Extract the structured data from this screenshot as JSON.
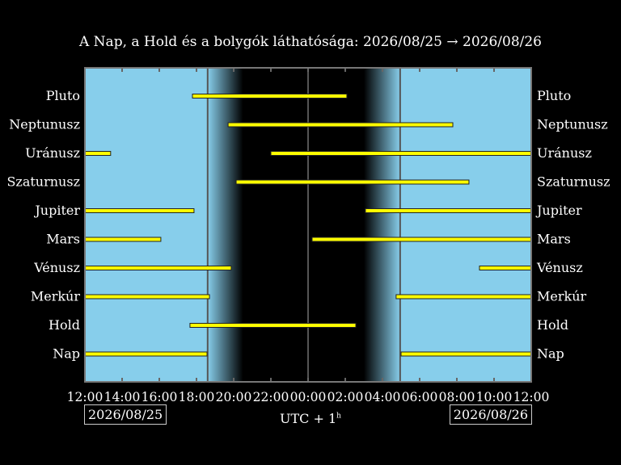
{
  "chart_data": {
    "type": "bar",
    "subtype": "timeline",
    "title": "A Nap, a Hold és a bolygók láthatósága: 2026/08/25 → 2026/08/26",
    "xlabel": "UTC + 1",
    "xlabel_sup": "h",
    "x_range_hours": [
      12,
      36
    ],
    "x_tick_labels": [
      "12:00",
      "14:00",
      "16:00",
      "18:00",
      "20:00",
      "22:00",
      "00:00",
      "02:00",
      "04:00",
      "06:00",
      "08:00",
      "10:00",
      "12:00"
    ],
    "date_start": "2026/08/25",
    "date_end": "2026/08/26",
    "twilight": {
      "sunset": "18:36",
      "night_start": "20:30",
      "night_end": "03:00",
      "sunrise": "04:57"
    },
    "colors": {
      "day": "#87ceeb",
      "night": "#000000",
      "bar": "#ffff00"
    },
    "series": [
      {
        "name": "Pluto",
        "intervals": [
          [
            "17:47",
            "02:05"
          ]
        ]
      },
      {
        "name": "Neptunusz",
        "intervals": [
          [
            "19:42",
            "07:47"
          ]
        ]
      },
      {
        "name": "Uránusz",
        "intervals": [
          [
            "12:00",
            "13:23"
          ],
          [
            "22:00",
            "12:00"
          ]
        ]
      },
      {
        "name": "Szaturnusz",
        "intervals": [
          [
            "20:08",
            "08:39"
          ]
        ]
      },
      {
        "name": "Jupiter",
        "intervals": [
          [
            "12:00",
            "17:52"
          ],
          [
            "03:05",
            "12:00"
          ]
        ]
      },
      {
        "name": "Mars",
        "intervals": [
          [
            "12:00",
            "16:05"
          ],
          [
            "00:13",
            "12:00"
          ]
        ]
      },
      {
        "name": "Vénusz",
        "intervals": [
          [
            "12:00",
            "19:52"
          ],
          [
            "09:13",
            "12:00"
          ]
        ]
      },
      {
        "name": "Merkúr",
        "intervals": [
          [
            "12:00",
            "18:42"
          ],
          [
            "04:44",
            "12:00"
          ]
        ]
      },
      {
        "name": "Hold",
        "intervals": [
          [
            "17:39",
            "02:34"
          ]
        ]
      },
      {
        "name": "Nap",
        "intervals": [
          [
            "12:00",
            "18:34"
          ],
          [
            "05:00",
            "12:00"
          ]
        ]
      }
    ]
  }
}
